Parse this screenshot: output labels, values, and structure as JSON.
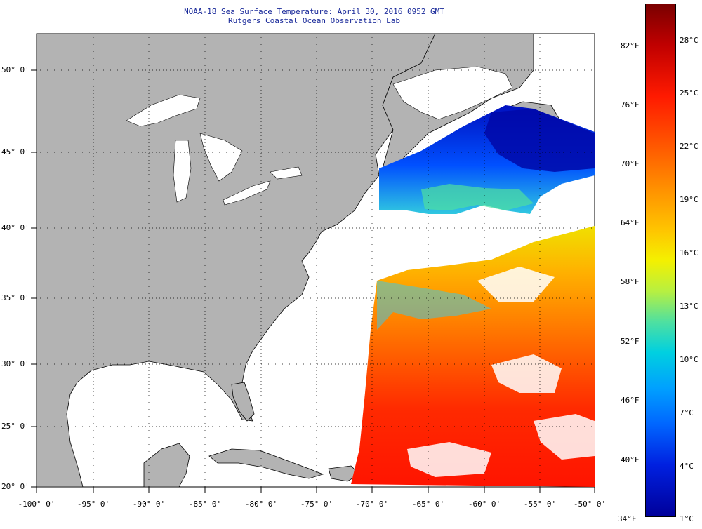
{
  "title": "NOAA-18 Sea Surface Temperature:  April 30, 2016 0952 GMT",
  "subtitle": "Rutgers Coastal Ocean Observation Lab",
  "latitude_labels": [
    "50° 0'",
    "45° 0'",
    "40° 0'",
    "35° 0'",
    "30° 0'",
    "25° 0'",
    "20° 0'"
  ],
  "longitude_labels": [
    "-100° 0'",
    "-95° 0'",
    "-90° 0'",
    "-85° 0'",
    "-80° 0'",
    "-75° 0'",
    "-70° 0'",
    "-65° 0'",
    "-60° 0'",
    "-55° 0'",
    "-50° 0'"
  ],
  "colorbar": {
    "fahrenheit_labels": [
      "82°F",
      "76°F",
      "70°F",
      "64°F",
      "58°F",
      "52°F",
      "46°F",
      "40°F",
      "34°F"
    ],
    "celsius_labels": [
      "28°C",
      "25°C",
      "22°C",
      "19°C",
      "16°C",
      "13°C",
      "10°C",
      "7°C",
      "4°C",
      "1°C"
    ]
  },
  "colors": {
    "land": "#b3b3b3",
    "ocean_no_data": "#ffffff",
    "title_text": "#1a2a9a"
  }
}
